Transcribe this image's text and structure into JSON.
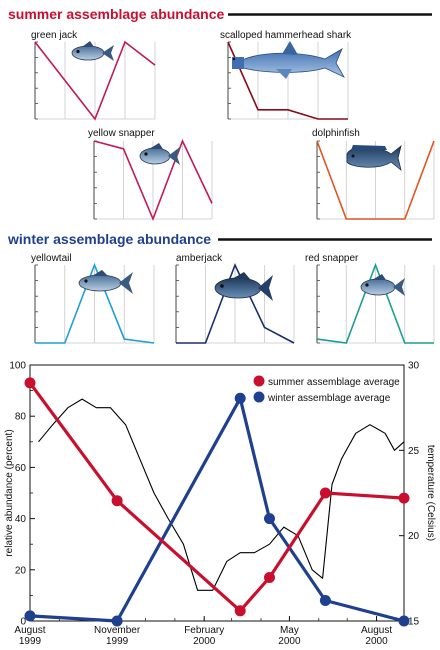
{
  "colors": {
    "summer": "#c8102e",
    "winter": "#1f3f8f",
    "grid": "#c9c9c9"
  },
  "chart_data": [
    {
      "type": "line",
      "title": "summer assemblage abundance",
      "panels": [
        {
          "name": "green jack",
          "icon": "green-jack-fish-icon",
          "color": "#c2185b",
          "values": [
            100,
            50,
            0,
            100,
            70
          ]
        },
        {
          "name": "scalloped hammerhead shark",
          "icon": "hammerhead-shark-icon",
          "color": "#8b0a1a",
          "values": [
            100,
            12,
            12,
            0,
            0
          ]
        },
        {
          "name": "yellow snapper",
          "icon": "yellow-snapper-fish-icon",
          "color": "#c2185b",
          "values": [
            100,
            90,
            0,
            100,
            20
          ]
        },
        {
          "name": "dolphinfish",
          "icon": "dolphinfish-icon",
          "color": "#e0541e",
          "values": [
            100,
            0,
            0,
            0,
            100
          ]
        }
      ]
    },
    {
      "type": "line",
      "title": "winter assemblage abundance",
      "panels": [
        {
          "name": "yellowtail",
          "icon": "yellowtail-fish-icon",
          "color": "#1f9fd4",
          "values": [
            0,
            0,
            100,
            5,
            0
          ]
        },
        {
          "name": "amberjack",
          "icon": "amberjack-fish-icon",
          "color": "#1a2e6e",
          "values": [
            0,
            0,
            100,
            20,
            0
          ]
        },
        {
          "name": "red snapper",
          "icon": "red-snapper-fish-icon",
          "color": "#1a9e8f",
          "values": [
            5,
            0,
            100,
            0,
            0
          ]
        }
      ]
    },
    {
      "type": "line",
      "xlabels": [
        "August\n1999",
        "November\n1999",
        "February\n2000",
        "May\n2000",
        "August\n2000"
      ],
      "ylabel": "relative abundance (percent)",
      "ylim": [
        0,
        100
      ],
      "yticks": [
        0,
        20,
        40,
        60,
        80,
        100
      ],
      "y2label": "temperature (Celsius)",
      "y2lim": [
        15,
        30
      ],
      "y2ticks": [
        15,
        20,
        25,
        30
      ],
      "legend": "top-right",
      "series": [
        {
          "name": "summer assemblage average",
          "color": "#c8102e",
          "points": [
            {
              "x": "1999-08-01",
              "y": 93
            },
            {
              "x": "1999-11-01",
              "y": 47
            },
            {
              "x": "2000-03-10",
              "y": 4
            },
            {
              "x": "2000-04-10",
              "y": 17
            },
            {
              "x": "2000-06-08",
              "y": 50
            },
            {
              "x": "2000-08-30",
              "y": 48
            }
          ]
        },
        {
          "name": "winter assemblage average",
          "color": "#1f3f8f",
          "points": [
            {
              "x": "1999-08-01",
              "y": 2
            },
            {
              "x": "1999-11-01",
              "y": 0
            },
            {
              "x": "2000-03-10",
              "y": 87
            },
            {
              "x": "2000-04-10",
              "y": 40
            },
            {
              "x": "2000-06-08",
              "y": 8
            },
            {
              "x": "2000-08-30",
              "y": 0
            }
          ]
        },
        {
          "name": "temperature",
          "color": "#000000",
          "axis": "right",
          "points": [
            {
              "x": "1999-08-10",
              "y": 25.5
            },
            {
              "x": "1999-08-25",
              "y": 26.5
            },
            {
              "x": "1999-09-10",
              "y": 27.5
            },
            {
              "x": "1999-09-25",
              "y": 28.0
            },
            {
              "x": "1999-10-10",
              "y": 27.5
            },
            {
              "x": "1999-10-25",
              "y": 27.5
            },
            {
              "x": "1999-11-10",
              "y": 26.5
            },
            {
              "x": "1999-11-25",
              "y": 24.5
            },
            {
              "x": "1999-12-10",
              "y": 22.5
            },
            {
              "x": "1999-12-25",
              "y": 21.0
            },
            {
              "x": "2000-01-10",
              "y": 19.5
            },
            {
              "x": "2000-01-25",
              "y": 16.8
            },
            {
              "x": "2000-02-10",
              "y": 16.8
            },
            {
              "x": "2000-02-25",
              "y": 18.5
            },
            {
              "x": "2000-03-10",
              "y": 19.0
            },
            {
              "x": "2000-03-25",
              "y": 19.0
            },
            {
              "x": "2000-04-10",
              "y": 19.5
            },
            {
              "x": "2000-04-25",
              "y": 20.5
            },
            {
              "x": "2000-05-10",
              "y": 20.0
            },
            {
              "x": "2000-05-25",
              "y": 18.0
            },
            {
              "x": "2000-06-05",
              "y": 17.5
            },
            {
              "x": "2000-06-15",
              "y": 23.0
            },
            {
              "x": "2000-06-25",
              "y": 24.5
            },
            {
              "x": "2000-07-10",
              "y": 26.0
            },
            {
              "x": "2000-07-25",
              "y": 26.5
            },
            {
              "x": "2000-08-10",
              "y": 26.0
            },
            {
              "x": "2000-08-20",
              "y": 25.0
            },
            {
              "x": "2000-08-30",
              "y": 25.5
            }
          ]
        }
      ]
    }
  ]
}
